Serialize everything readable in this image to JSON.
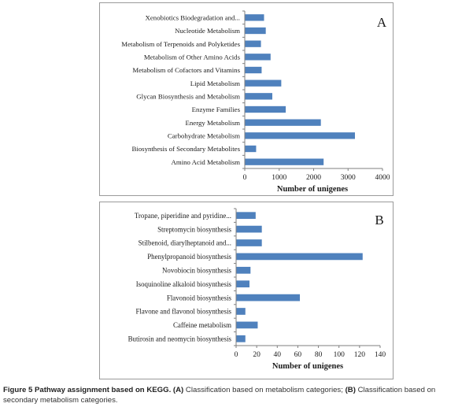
{
  "chart_data": [
    {
      "type": "bar",
      "orientation": "horizontal",
      "panel_label": "A",
      "categories": [
        "Amino Acid Metabolism",
        "Biosynthesis of Secondary Metabolites",
        "Carbohydrate Metabolism",
        "Energy Metabolism",
        "Enzyme Families",
        "Glycan Biosynthesis and Metabolism",
        "Lipid Metabolism",
        "Metabolism of Cofactors and Vitamins",
        "Metabolism of Other Amino Acids",
        "Metabolism of Terpenoids and Polyketides",
        "Nucleotide Metabolism",
        "Xenobiotics Biodegradation and..."
      ],
      "values": [
        2290,
        330,
        3200,
        2210,
        1190,
        800,
        1060,
        490,
        750,
        470,
        610,
        560
      ],
      "xlabel": "Number of unigenes",
      "xlim": [
        0,
        4000
      ],
      "xticks": [
        "0",
        "1000",
        "2000",
        "3000",
        "4000"
      ],
      "bar_color": "#4f81bd",
      "grid": false,
      "legend": "none"
    },
    {
      "type": "bar",
      "orientation": "horizontal",
      "panel_label": "B",
      "categories": [
        "Butirosin and neomycin biosynthesis",
        "Caffeine metabolism",
        "Flavone and flavonol biosynthesis",
        "Flavonoid biosynthesis",
        "Isoquinoline alkaloid biosynthesis",
        "Novobiocin biosynthesis",
        "Phenylpropanoid biosynthesis",
        "Stilbenoid, diarylheptanoid and...",
        "Streptomycin biosynthesis",
        "Tropane, piperidine and pyridine..."
      ],
      "values": [
        9,
        21,
        9,
        62,
        13,
        14,
        123,
        25,
        25,
        19
      ],
      "xlabel": "Number of unigenes",
      "xlim": [
        0,
        140
      ],
      "xticks": [
        "0",
        "20",
        "40",
        "60",
        "80",
        "100",
        "120",
        "140"
      ],
      "bar_color": "#4f81bd",
      "grid": false,
      "legend": "none"
    }
  ],
  "caption": {
    "bold": "Figure 5 Pathway assignment based on KEGG.",
    "a_marker": "(A)",
    "a_text": "Classification based on metabolism categories;",
    "b_marker": "(B)",
    "b_text": "Classification based on secondary metabolism categories."
  }
}
